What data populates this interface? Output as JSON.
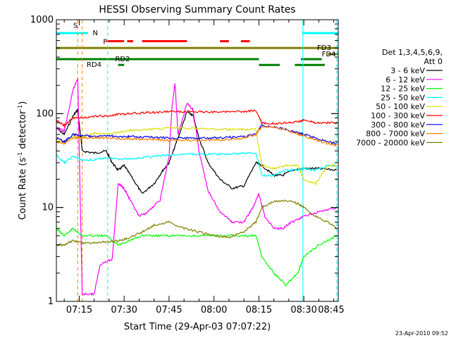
{
  "chart_data": {
    "type": "line",
    "title": "HESSI Observing Summary Count Rates",
    "xlabel": "Start Time (29-Apr-03 07:07:22)",
    "ylabel_main": "Count Rate (s",
    "ylabel_sup1": "-1",
    "ylabel_mid": " detector",
    "ylabel_sup2": "-1",
    "ylabel_end": ")",
    "yscale": "log",
    "ylim": [
      1,
      1000
    ],
    "xlim_minutes": [
      7.37,
      101.5
    ],
    "x_ticks": [
      {
        "label": "07:15",
        "min": 15
      },
      {
        "label": "07:30",
        "min": 30
      },
      {
        "label": "07:45",
        "min": 45
      },
      {
        "label": "08:00",
        "min": 60
      },
      {
        "label": "08:15",
        "min": 75
      },
      {
        "label": "08:30",
        "min": 90
      },
      {
        "label": "08:45",
        "min": 105
      }
    ],
    "y_ticks": [
      {
        "label": "1",
        "val": 1
      },
      {
        "label": "10",
        "val": 10
      },
      {
        "label": "100",
        "val": 100
      },
      {
        "label": "1000",
        "val": 1000
      }
    ],
    "legend_header": [
      "Det 1,3,4,5,6,9,",
      "Att 0"
    ],
    "series": [
      {
        "name": "3 - 6 keV",
        "color": "#000000",
        "points": [
          [
            7.4,
            70
          ],
          [
            10,
            60
          ],
          [
            13,
            95
          ],
          [
            14.5,
            110
          ],
          [
            16,
            40
          ],
          [
            20,
            38
          ],
          [
            24,
            40
          ],
          [
            26,
            30
          ],
          [
            28,
            25
          ],
          [
            30,
            28
          ],
          [
            33,
            20
          ],
          [
            36,
            14
          ],
          [
            40,
            18
          ],
          [
            43,
            25
          ],
          [
            45,
            30
          ],
          [
            48,
            55
          ],
          [
            51,
            105
          ],
          [
            53,
            95
          ],
          [
            55,
            55
          ],
          [
            58,
            30
          ],
          [
            62,
            20
          ],
          [
            66,
            16
          ],
          [
            70,
            17
          ],
          [
            74,
            30
          ],
          [
            76,
            28
          ],
          [
            80,
            22
          ],
          [
            83,
            22
          ],
          [
            86,
            25
          ],
          [
            90,
            26
          ],
          [
            95,
            26
          ],
          [
            101,
            25
          ]
        ]
      },
      {
        "name": "6 - 12 keV",
        "color": "#ff00ff",
        "points": [
          [
            7.4,
            70
          ],
          [
            10,
            65
          ],
          [
            13,
            180
          ],
          [
            14.5,
            240
          ],
          [
            16,
            1.2
          ],
          [
            20,
            1.2
          ],
          [
            22,
            2.5
          ],
          [
            26,
            2.8
          ],
          [
            28,
            18
          ],
          [
            30,
            16
          ],
          [
            32,
            12
          ],
          [
            35,
            8
          ],
          [
            38,
            9
          ],
          [
            42,
            12
          ],
          [
            45,
            35
          ],
          [
            46,
            120
          ],
          [
            47,
            210
          ],
          [
            48,
            60
          ],
          [
            51,
            130
          ],
          [
            53,
            110
          ],
          [
            55,
            40
          ],
          [
            58,
            15
          ],
          [
            62,
            9
          ],
          [
            66,
            7
          ],
          [
            70,
            7
          ],
          [
            73,
            10
          ],
          [
            75,
            14
          ],
          [
            77,
            8
          ],
          [
            80,
            6
          ],
          [
            83,
            6
          ],
          [
            86,
            7
          ],
          [
            90,
            8
          ],
          [
            95,
            9
          ],
          [
            101,
            10
          ]
        ]
      },
      {
        "name": "12 - 25 keV",
        "color": "#00ff00",
        "points": [
          [
            7.4,
            6
          ],
          [
            10,
            5
          ],
          [
            13,
            6
          ],
          [
            16,
            5
          ],
          [
            20,
            5
          ],
          [
            24,
            5
          ],
          [
            28,
            4
          ],
          [
            32,
            4.5
          ],
          [
            36,
            5
          ],
          [
            40,
            5
          ],
          [
            45,
            5
          ],
          [
            50,
            5
          ],
          [
            55,
            5
          ],
          [
            60,
            5
          ],
          [
            65,
            5
          ],
          [
            70,
            5
          ],
          [
            74,
            5
          ],
          [
            76,
            3
          ],
          [
            80,
            2
          ],
          [
            84,
            1.5
          ],
          [
            88,
            2
          ],
          [
            90,
            3
          ],
          [
            95,
            4
          ],
          [
            101,
            5
          ]
        ]
      },
      {
        "name": "25 - 50 keV",
        "color": "#00ffff",
        "points": [
          [
            7.4,
            36
          ],
          [
            10,
            30
          ],
          [
            13,
            35
          ],
          [
            16,
            32
          ],
          [
            20,
            32
          ],
          [
            24,
            34
          ],
          [
            28,
            33
          ],
          [
            32,
            33
          ],
          [
            36,
            34
          ],
          [
            40,
            35
          ],
          [
            45,
            36
          ],
          [
            50,
            37
          ],
          [
            55,
            37
          ],
          [
            60,
            37
          ],
          [
            65,
            37
          ],
          [
            70,
            38
          ],
          [
            74,
            38
          ],
          [
            76,
            22
          ],
          [
            80,
            22
          ],
          [
            84,
            25
          ],
          [
            88,
            25
          ],
          [
            90,
            26
          ],
          [
            94,
            25
          ],
          [
            98,
            28
          ],
          [
            101,
            28
          ]
        ]
      },
      {
        "name": "50 - 100 keV",
        "color": "#dddd00",
        "points": [
          [
            7.4,
            52
          ],
          [
            10,
            50
          ],
          [
            13,
            58
          ],
          [
            16,
            55
          ],
          [
            20,
            62
          ],
          [
            24,
            60
          ],
          [
            28,
            63
          ],
          [
            32,
            66
          ],
          [
            36,
            68
          ],
          [
            40,
            68
          ],
          [
            45,
            70
          ],
          [
            50,
            70
          ],
          [
            55,
            70
          ],
          [
            60,
            68
          ],
          [
            65,
            68
          ],
          [
            70,
            68
          ],
          [
            74,
            68
          ],
          [
            76,
            28
          ],
          [
            80,
            26
          ],
          [
            84,
            28
          ],
          [
            88,
            28
          ],
          [
            90,
            20
          ],
          [
            94,
            18
          ],
          [
            98,
            28
          ],
          [
            101,
            28
          ]
        ]
      },
      {
        "name": "100 - 300 keV",
        "color": "#ff0000",
        "points": [
          [
            7.4,
            85
          ],
          [
            10,
            75
          ],
          [
            13,
            90
          ],
          [
            16,
            90
          ],
          [
            20,
            93
          ],
          [
            24,
            95
          ],
          [
            28,
            98
          ],
          [
            32,
            100
          ],
          [
            36,
            102
          ],
          [
            40,
            103
          ],
          [
            45,
            105
          ],
          [
            50,
            105
          ],
          [
            55,
            105
          ],
          [
            60,
            104
          ],
          [
            65,
            104
          ],
          [
            70,
            105
          ],
          [
            74,
            108
          ],
          [
            76,
            80
          ],
          [
            80,
            78
          ],
          [
            84,
            80
          ],
          [
            88,
            82
          ],
          [
            90,
            85
          ],
          [
            94,
            80
          ],
          [
            98,
            80
          ],
          [
            101,
            80
          ]
        ]
      },
      {
        "name": "300 - 800 keV",
        "color": "#0000ff",
        "points": [
          [
            7.4,
            55
          ],
          [
            10,
            50
          ],
          [
            13,
            60
          ],
          [
            16,
            58
          ],
          [
            20,
            58
          ],
          [
            24,
            58
          ],
          [
            28,
            57
          ],
          [
            32,
            57
          ],
          [
            36,
            56
          ],
          [
            40,
            56
          ],
          [
            45,
            55
          ],
          [
            50,
            55
          ],
          [
            55,
            55
          ],
          [
            60,
            55
          ],
          [
            65,
            56
          ],
          [
            70,
            57
          ],
          [
            74,
            60
          ],
          [
            76,
            75
          ],
          [
            80,
            72
          ],
          [
            84,
            68
          ],
          [
            88,
            62
          ],
          [
            90,
            60
          ],
          [
            94,
            55
          ],
          [
            98,
            50
          ],
          [
            101,
            48
          ]
        ]
      },
      {
        "name": "800 - 7000 keV",
        "color": "#ff8000",
        "points": [
          [
            7.4,
            50
          ],
          [
            10,
            48
          ],
          [
            13,
            55
          ],
          [
            16,
            55
          ],
          [
            20,
            55
          ],
          [
            24,
            55
          ],
          [
            28,
            54
          ],
          [
            32,
            54
          ],
          [
            36,
            53
          ],
          [
            40,
            53
          ],
          [
            45,
            52
          ],
          [
            50,
            52
          ],
          [
            55,
            52
          ],
          [
            60,
            52
          ],
          [
            65,
            53
          ],
          [
            70,
            55
          ],
          [
            74,
            60
          ],
          [
            76,
            73
          ],
          [
            80,
            72
          ],
          [
            84,
            67
          ],
          [
            88,
            60
          ],
          [
            90,
            58
          ],
          [
            94,
            52
          ],
          [
            98,
            48
          ],
          [
            101,
            46
          ]
        ]
      },
      {
        "name": "7000 - 20000 keV",
        "color": "#808000",
        "points": [
          [
            7.4,
            4
          ],
          [
            10,
            4
          ],
          [
            13,
            4.5
          ],
          [
            16,
            4.2
          ],
          [
            20,
            4.2
          ],
          [
            24,
            4.3
          ],
          [
            28,
            4.4
          ],
          [
            32,
            4.8
          ],
          [
            36,
            5.5
          ],
          [
            40,
            6.5
          ],
          [
            45,
            7
          ],
          [
            50,
            6
          ],
          [
            55,
            5.5
          ],
          [
            60,
            5
          ],
          [
            65,
            4.8
          ],
          [
            70,
            5.5
          ],
          [
            74,
            7
          ],
          [
            76,
            10
          ],
          [
            80,
            11.5
          ],
          [
            84,
            12
          ],
          [
            88,
            11
          ],
          [
            90,
            10
          ],
          [
            94,
            8
          ],
          [
            98,
            7
          ],
          [
            101,
            6
          ]
        ]
      }
    ],
    "flags": [
      {
        "name": "S",
        "color": "#ff8000",
        "level": 860,
        "segments": []
      },
      {
        "name": "N",
        "color": "#00ffff",
        "level": 720,
        "segments": [
          [
            7.4,
            18
          ],
          [
            89.5,
            101.5
          ]
        ]
      },
      {
        "name": "F",
        "color": "#ff0000",
        "level": 590,
        "segments": [
          [
            24,
            30
          ],
          [
            31,
            33
          ],
          [
            36,
            51
          ],
          [
            62,
            65
          ],
          [
            69,
            72
          ]
        ]
      },
      {
        "name": "FD3",
        "color": "#808000",
        "level": 500,
        "segments": [
          [
            7.4,
            101.5
          ]
        ]
      },
      {
        "name": "FD4",
        "color": "#808000",
        "level": 430,
        "segments": [
          [
            98,
            101.5
          ]
        ]
      },
      {
        "name": "RD2",
        "color": "#008000",
        "level": 380,
        "segments": [
          [
            7.4,
            75
          ],
          [
            89,
            96
          ]
        ]
      },
      {
        "name": "RD4",
        "color": "#008000",
        "level": 330,
        "segments": [
          [
            28,
            30
          ],
          [
            75,
            82
          ],
          [
            87,
            97
          ]
        ]
      }
    ],
    "vlines": [
      {
        "min": 14.5,
        "color": "#ff8000",
        "style": "dashed"
      },
      {
        "min": 16,
        "color": "#ff8000",
        "style": "dashed"
      },
      {
        "min": 24.5,
        "color": "#00ffff",
        "style": "dashed"
      },
      {
        "min": 89.7,
        "color": "#00ffff",
        "style": "solid"
      },
      {
        "min": 101,
        "color": "#00ffff",
        "style": "dashed"
      }
    ],
    "timestamp": "23-Apr-2010 09:52"
  }
}
